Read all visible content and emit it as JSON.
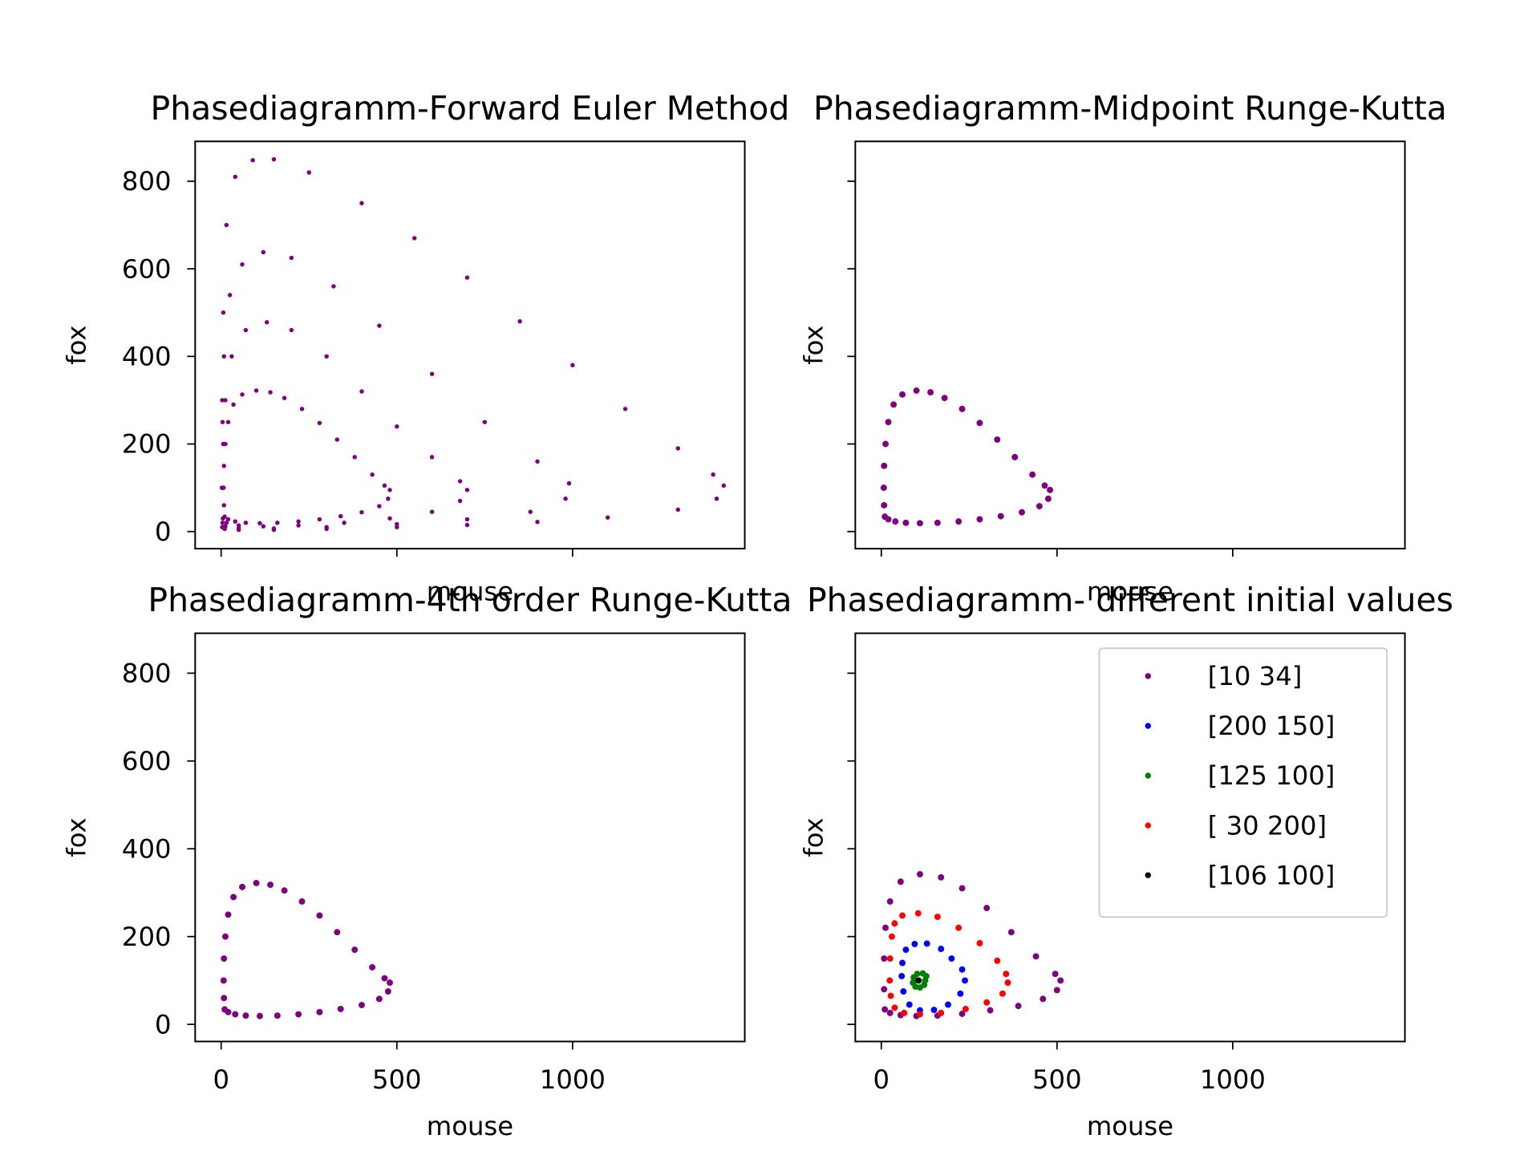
{
  "chart_data": [
    {
      "type": "scatter",
      "title": "Phasediagramm-Forward Euler Method",
      "xlabel": "mouse",
      "ylabel": "fox",
      "xlim": [
        -74,
        1490
      ],
      "ylim": [
        -39,
        891
      ],
      "xticks": [
        0,
        500,
        1000
      ],
      "yticks": [
        0,
        200,
        400,
        600,
        800
      ],
      "xticklabels": false,
      "yticklabels": true,
      "series": [
        {
          "color": "#800080",
          "x": [
            10,
            8,
            7,
            8,
            12,
            20,
            35,
            60,
            100,
            140,
            180,
            230,
            280,
            330,
            380,
            430,
            465,
            480,
            475,
            450,
            400,
            340,
            280,
            220,
            160,
            110,
            70,
            40,
            20,
            5,
            4,
            6,
            12,
            30,
            70,
            130,
            200,
            300,
            400,
            500,
            600,
            680,
            700,
            680,
            600,
            480,
            350,
            220,
            120,
            50,
            15,
            4,
            3,
            4,
            8,
            25,
            60,
            120,
            200,
            320,
            450,
            600,
            750,
            900,
            990,
            980,
            880,
            700,
            500,
            300,
            150,
            50,
            12,
            3,
            2,
            3,
            6,
            15,
            40,
            90,
            150,
            250,
            400,
            550,
            700,
            850,
            1000,
            1150,
            1300,
            1400,
            1430,
            1410,
            1300,
            1100,
            900,
            700,
            500,
            300,
            150,
            50,
            10
          ],
          "y": [
            34,
            60,
            100,
            150,
            200,
            250,
            290,
            313,
            322,
            318,
            305,
            280,
            248,
            210,
            170,
            130,
            105,
            95,
            75,
            58,
            44,
            35,
            28,
            23,
            20,
            19,
            20,
            23,
            28,
            30,
            100,
            200,
            300,
            400,
            460,
            478,
            460,
            400,
            320,
            240,
            170,
            115,
            95,
            70,
            45,
            30,
            20,
            14,
            12,
            14,
            20,
            20,
            100,
            250,
            400,
            540,
            610,
            638,
            625,
            560,
            470,
            360,
            250,
            160,
            110,
            75,
            45,
            28,
            17,
            10,
            7,
            8,
            12,
            10,
            100,
            300,
            500,
            700,
            810,
            848,
            850,
            820,
            750,
            670,
            580,
            480,
            380,
            280,
            190,
            130,
            105,
            75,
            50,
            32,
            22,
            15,
            10,
            6,
            4,
            4,
            6
          ]
        }
      ]
    },
    {
      "type": "scatter",
      "title": "Phasediagramm-Midpoint Runge-Kutta",
      "xlabel": "mouse",
      "ylabel": "fox",
      "xlim": [
        -74,
        1490
      ],
      "ylim": [
        -39,
        891
      ],
      "xticks": [
        0,
        500,
        1000
      ],
      "yticks": [
        0,
        200,
        400,
        600,
        800
      ],
      "xticklabels": false,
      "yticklabels": false,
      "series": [
        {
          "color": "#800080",
          "x": [
            10,
            8,
            7,
            8,
            12,
            20,
            35,
            60,
            100,
            140,
            180,
            230,
            280,
            330,
            380,
            430,
            465,
            480,
            475,
            450,
            400,
            340,
            280,
            220,
            160,
            110,
            70,
            40,
            20
          ],
          "y": [
            34,
            60,
            100,
            150,
            200,
            250,
            290,
            313,
            322,
            318,
            305,
            280,
            248,
            210,
            170,
            130,
            105,
            95,
            75,
            58,
            44,
            35,
            28,
            23,
            20,
            19,
            20,
            23,
            28
          ]
        }
      ]
    },
    {
      "type": "scatter",
      "title": "Phasediagramm-4th order Runge-Kutta",
      "xlabel": "mouse",
      "ylabel": "fox",
      "xlim": [
        -74,
        1490
      ],
      "ylim": [
        -39,
        891
      ],
      "xticks": [
        0,
        500,
        1000
      ],
      "yticks": [
        0,
        200,
        400,
        600,
        800
      ],
      "xticklabels": true,
      "yticklabels": true,
      "series": [
        {
          "color": "#800080",
          "x": [
            10,
            8,
            7,
            8,
            12,
            20,
            35,
            60,
            100,
            140,
            180,
            230,
            280,
            330,
            380,
            430,
            465,
            480,
            475,
            450,
            400,
            340,
            280,
            220,
            160,
            110,
            70,
            40,
            20
          ],
          "y": [
            34,
            60,
            100,
            150,
            200,
            250,
            290,
            313,
            322,
            318,
            305,
            280,
            248,
            210,
            170,
            130,
            105,
            95,
            75,
            58,
            44,
            35,
            28,
            23,
            20,
            19,
            20,
            23,
            28
          ]
        }
      ]
    },
    {
      "type": "scatter",
      "title": "Phasediagramm- different initial values",
      "xlabel": "mouse",
      "ylabel": "fox",
      "xlim": [
        -74,
        1490
      ],
      "ylim": [
        -39,
        891
      ],
      "xticks": [
        0,
        500,
        1000
      ],
      "yticks": [
        0,
        200,
        400,
        600,
        800
      ],
      "xticklabels": true,
      "yticklabels": false,
      "legend": "upper right",
      "series": [
        {
          "name": "[10 34]",
          "color": "#800080",
          "x": [
            10,
            8,
            8,
            12,
            25,
            55,
            110,
            170,
            230,
            300,
            370,
            440,
            495,
            510,
            500,
            460,
            390,
            310,
            230,
            160,
            100,
            55,
            25
          ],
          "y": [
            34,
            80,
            150,
            220,
            280,
            325,
            342,
            335,
            310,
            265,
            210,
            155,
            115,
            100,
            78,
            58,
            42,
            32,
            24,
            20,
            19,
            21,
            26
          ]
        },
        {
          "name": "[200 150]",
          "color": "#0000ff",
          "x": [
            200,
            170,
            130,
            95,
            70,
            60,
            58,
            63,
            80,
            110,
            150,
            190,
            225,
            238,
            230
          ],
          "y": [
            150,
            172,
            184,
            183,
            170,
            140,
            110,
            75,
            45,
            32,
            33,
            45,
            70,
            100,
            125
          ]
        },
        {
          "name": "[125 100]",
          "color": "#008000",
          "x": [
            125,
            128,
            118,
            102,
            92,
            90,
            97,
            110,
            122
          ],
          "y": [
            100,
            110,
            116,
            115,
            107,
            95,
            86,
            84,
            90
          ]
        },
        {
          "name": "[ 30 200]",
          "color": "#ff0000",
          "x": [
            30,
            38,
            60,
            105,
            160,
            220,
            280,
            330,
            355,
            360,
            345,
            300,
            240,
            170,
            110,
            65,
            38,
            27,
            24,
            25
          ],
          "y": [
            200,
            230,
            248,
            253,
            245,
            220,
            185,
            145,
            115,
            95,
            70,
            50,
            35,
            26,
            23,
            26,
            38,
            65,
            100,
            150
          ]
        },
        {
          "name": "[106 100]",
          "color": "#000000",
          "x": [
            106
          ],
          "y": [
            100
          ]
        }
      ]
    }
  ]
}
